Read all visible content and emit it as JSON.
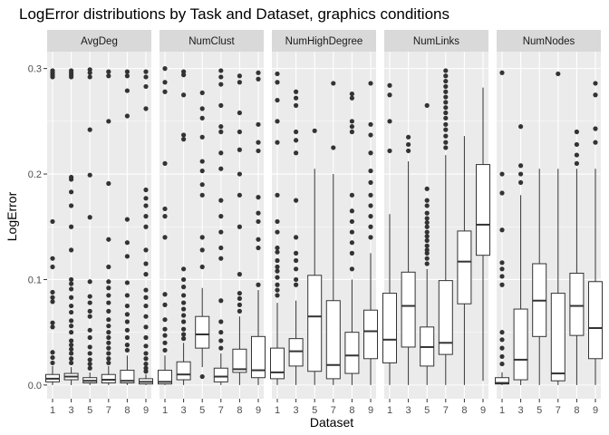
{
  "chart_data": {
    "type": "boxplot",
    "title": "LogError distributions by Task and Dataset, graphics conditions",
    "xlabel": "Dataset",
    "ylabel": "LogError",
    "ylim": [
      -0.013,
      0.316
    ],
    "yticks": [
      0.0,
      0.1,
      0.2,
      0.3
    ],
    "ytick_labels": [
      "0.0",
      "0.1",
      "0.2",
      "0.3"
    ],
    "categories": [
      "1",
      "3",
      "5",
      "7",
      "8",
      "9"
    ],
    "panel_fill": "#ebebeb",
    "strip_fill": "#d9d9d9",
    "grid_color": "#ffffff",
    "box_fill": "#ffffff",
    "box_stroke": "#333333",
    "point_color": "#333333",
    "panels": [
      {
        "name": "AvgDeg",
        "boxes": [
          {
            "category": "1",
            "lower": 0.0,
            "q1": 0.003,
            "median": 0.006,
            "q3": 0.01,
            "upper": 0.018,
            "outliers": [
              0.021,
              0.026,
              0.031,
              0.055,
              0.059,
              0.079,
              0.083,
              0.088,
              0.112,
              0.12,
              0.155,
              0.292,
              0.294,
              0.296,
              0.298
            ]
          },
          {
            "category": "3",
            "lower": 0.0,
            "q1": 0.005,
            "median": 0.008,
            "q3": 0.011,
            "upper": 0.017,
            "outliers": [
              0.021,
              0.025,
              0.03,
              0.034,
              0.038,
              0.042,
              0.05,
              0.056,
              0.061,
              0.069,
              0.075,
              0.083,
              0.091,
              0.096,
              0.1,
              0.128,
              0.15,
              0.17,
              0.183,
              0.195,
              0.197,
              0.292,
              0.294,
              0.296,
              0.298
            ]
          },
          {
            "category": "5",
            "lower": 0.0,
            "q1": 0.002,
            "median": 0.004,
            "q3": 0.007,
            "upper": 0.012,
            "outliers": [
              0.016,
              0.02,
              0.024,
              0.03,
              0.036,
              0.045,
              0.052,
              0.065,
              0.07,
              0.078,
              0.084,
              0.098,
              0.159,
              0.199,
              0.242,
              0.292,
              0.296,
              0.299
            ]
          },
          {
            "category": "7",
            "lower": 0.0,
            "q1": 0.002,
            "median": 0.005,
            "q3": 0.01,
            "upper": 0.018,
            "outliers": [
              0.021,
              0.025,
              0.03,
              0.035,
              0.04,
              0.045,
              0.05,
              0.056,
              0.062,
              0.07,
              0.078,
              0.085,
              0.092,
              0.098,
              0.112,
              0.138,
              0.191,
              0.25,
              0.293,
              0.297
            ]
          },
          {
            "category": "8",
            "lower": 0.0,
            "q1": 0.002,
            "median": 0.004,
            "q3": 0.014,
            "upper": 0.028,
            "outliers": [
              0.033,
              0.038,
              0.045,
              0.052,
              0.06,
              0.067,
              0.075,
              0.085,
              0.097,
              0.122,
              0.135,
              0.157,
              0.255,
              0.279,
              0.293,
              0.297
            ]
          },
          {
            "category": "9",
            "lower": 0.0,
            "q1": 0.001,
            "median": 0.003,
            "q3": 0.006,
            "upper": 0.01,
            "outliers": [
              0.013,
              0.016,
              0.02,
              0.025,
              0.03,
              0.037,
              0.045,
              0.055,
              0.065,
              0.075,
              0.083,
              0.09,
              0.105,
              0.115,
              0.128,
              0.15,
              0.16,
              0.17,
              0.177,
              0.185,
              0.262,
              0.283,
              0.292,
              0.297
            ]
          }
        ]
      },
      {
        "name": "NumClust",
        "boxes": [
          {
            "category": "1",
            "lower": 0.0,
            "q1": 0.001,
            "median": 0.003,
            "q3": 0.014,
            "upper": 0.028,
            "outliers": [
              0.033,
              0.04,
              0.047,
              0.053,
              0.062,
              0.076,
              0.086,
              0.14,
              0.16,
              0.167,
              0.21,
              0.278,
              0.287,
              0.3
            ]
          },
          {
            "category": "3",
            "lower": 0.0,
            "q1": 0.005,
            "median": 0.01,
            "q3": 0.022,
            "upper": 0.04,
            "outliers": [
              0.044,
              0.048,
              0.053,
              0.06,
              0.066,
              0.072,
              0.078,
              0.085,
              0.093,
              0.1,
              0.11,
              0.233,
              0.237,
              0.275,
              0.294,
              0.297
            ]
          },
          {
            "category": "5",
            "lower": 0.017,
            "q1": 0.035,
            "median": 0.048,
            "q3": 0.065,
            "upper": 0.092,
            "outliers": [
              0.008,
              0.112,
              0.128,
              0.14,
              0.18,
              0.19,
              0.203,
              0.212,
              0.235,
              0.253,
              0.262,
              0.277
            ]
          },
          {
            "category": "7",
            "lower": 0.0,
            "q1": 0.003,
            "median": 0.008,
            "q3": 0.016,
            "upper": 0.03,
            "outliers": [
              0.035,
              0.042,
              0.05,
              0.06,
              0.08,
              0.12,
              0.13,
              0.145,
              0.16,
              0.175,
              0.205,
              0.22,
              0.24,
              0.245,
              0.265,
              0.285,
              0.292,
              0.298
            ]
          },
          {
            "category": "8",
            "lower": 0.0,
            "q1": 0.012,
            "median": 0.015,
            "q3": 0.034,
            "upper": 0.065,
            "outliers": [
              0.07,
              0.076,
              0.082,
              0.087,
              0.105,
              0.15,
              0.18,
              0.2,
              0.223,
              0.24,
              0.258,
              0.287,
              0.293
            ]
          },
          {
            "category": "9",
            "lower": 0.0,
            "q1": 0.007,
            "median": 0.014,
            "q3": 0.046,
            "upper": 0.09,
            "outliers": [
              0.095,
              0.13,
              0.138,
              0.155,
              0.163,
              0.178,
              0.222,
              0.23,
              0.247,
              0.29,
              0.296
            ]
          }
        ]
      },
      {
        "name": "NumHighDegree",
        "boxes": [
          {
            "category": "1",
            "lower": 0.0,
            "q1": 0.006,
            "median": 0.012,
            "q3": 0.035,
            "upper": 0.078,
            "outliers": [
              0.085,
              0.09,
              0.095,
              0.102,
              0.108,
              0.112,
              0.118,
              0.126,
              0.13,
              0.145,
              0.155,
              0.18,
              0.23,
              0.25,
              0.27,
              0.287,
              0.295
            ]
          },
          {
            "category": "3",
            "lower": 0.0,
            "q1": 0.018,
            "median": 0.032,
            "q3": 0.044,
            "upper": 0.08,
            "outliers": [
              0.095,
              0.1,
              0.11,
              0.118,
              0.125,
              0.14,
              0.175,
              0.22,
              0.232,
              0.24,
              0.265,
              0.272,
              0.278
            ]
          },
          {
            "category": "5",
            "lower": 0.0,
            "q1": 0.013,
            "median": 0.065,
            "q3": 0.104,
            "upper": 0.205,
            "outliers": [
              0.241
            ]
          },
          {
            "category": "7",
            "lower": 0.0,
            "q1": 0.006,
            "median": 0.019,
            "q3": 0.08,
            "upper": 0.2,
            "outliers": [
              0.225,
              0.286
            ]
          },
          {
            "category": "8",
            "lower": 0.0,
            "q1": 0.011,
            "median": 0.028,
            "q3": 0.05,
            "upper": 0.1,
            "outliers": [
              0.11,
              0.125,
              0.135,
              0.145,
              0.155,
              0.165,
              0.18,
              0.24,
              0.245,
              0.25,
              0.272,
              0.276
            ]
          },
          {
            "category": "9",
            "lower": 0.0,
            "q1": 0.025,
            "median": 0.051,
            "q3": 0.071,
            "upper": 0.125,
            "outliers": [
              0.14,
              0.15,
              0.16,
              0.17,
              0.18,
              0.192,
              0.203,
              0.22,
              0.237,
              0.247,
              0.286
            ]
          }
        ]
      },
      {
        "name": "NumLinks",
        "boxes": [
          {
            "category": "1",
            "lower": 0.0,
            "q1": 0.021,
            "median": 0.043,
            "q3": 0.087,
            "upper": 0.162,
            "outliers": [
              0.222,
              0.25,
              0.275,
              0.284
            ]
          },
          {
            "category": "3",
            "lower": 0.0,
            "q1": 0.036,
            "median": 0.075,
            "q3": 0.107,
            "upper": 0.212,
            "outliers": [
              0.222,
              0.228,
              0.235
            ]
          },
          {
            "category": "5",
            "lower": 0.0,
            "q1": 0.018,
            "median": 0.036,
            "q3": 0.055,
            "upper": 0.11,
            "outliers": [
              0.115,
              0.12,
              0.125,
              0.128,
              0.132,
              0.137,
              0.141,
              0.145,
              0.15,
              0.154,
              0.158,
              0.163,
              0.17,
              0.175,
              0.186,
              0.265
            ]
          },
          {
            "category": "7",
            "lower": 0.0,
            "q1": 0.029,
            "median": 0.04,
            "q3": 0.099,
            "upper": 0.218,
            "outliers": [
              0.225,
              0.23,
              0.236,
              0.242,
              0.247,
              0.253,
              0.258,
              0.263,
              0.268,
              0.273,
              0.278,
              0.283,
              0.288,
              0.293,
              0.298
            ]
          },
          {
            "category": "8",
            "lower": 0.0,
            "q1": 0.077,
            "median": 0.117,
            "q3": 0.146,
            "upper": 0.236,
            "outliers": []
          },
          {
            "category": "9",
            "lower": 0.004,
            "q1": 0.123,
            "median": 0.152,
            "q3": 0.209,
            "upper": 0.282,
            "outliers": []
          }
        ]
      },
      {
        "name": "NumNodes",
        "boxes": [
          {
            "category": "1",
            "lower": 0.0,
            "q1": 0.001,
            "median": 0.002,
            "q3": 0.007,
            "upper": 0.012,
            "outliers": [
              0.02,
              0.027,
              0.035,
              0.043,
              0.05,
              0.095,
              0.103,
              0.11,
              0.116,
              0.147,
              0.182,
              0.2,
              0.296
            ]
          },
          {
            "category": "3",
            "lower": 0.0,
            "q1": 0.005,
            "median": 0.024,
            "q3": 0.072,
            "upper": 0.18,
            "outliers": [
              0.192,
              0.2,
              0.208,
              0.245
            ]
          },
          {
            "category": "5",
            "lower": 0.0,
            "q1": 0.046,
            "median": 0.08,
            "q3": 0.115,
            "upper": 0.205,
            "outliers": []
          },
          {
            "category": "7",
            "lower": 0.0,
            "q1": 0.004,
            "median": 0.011,
            "q3": 0.087,
            "upper": 0.205,
            "outliers": [
              0.295
            ]
          },
          {
            "category": "8",
            "lower": 0.0,
            "q1": 0.047,
            "median": 0.075,
            "q3": 0.106,
            "upper": 0.205,
            "outliers": [
              0.21,
              0.218,
              0.228,
              0.24
            ]
          },
          {
            "category": "9",
            "lower": 0.0,
            "q1": 0.025,
            "median": 0.054,
            "q3": 0.098,
            "upper": 0.205,
            "outliers": [
              0.23,
              0.243,
              0.275,
              0.286
            ]
          }
        ]
      }
    ]
  }
}
